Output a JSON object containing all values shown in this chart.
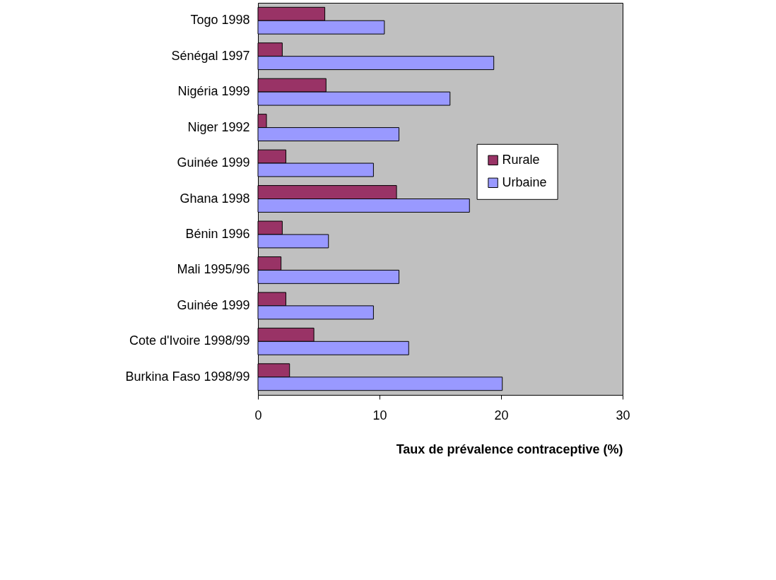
{
  "chart_data": {
    "type": "bar",
    "orientation": "horizontal",
    "xlabel": "Taux de prévalence contraceptive (%)",
    "categories": [
      "Togo 1998",
      "Sénégal 1997",
      "Nigéria 1999",
      "Niger 1992",
      "Guinée 1999",
      "Ghana 1998",
      "Bénin 1996",
      "Mali 1995/96",
      "Guinée 1999",
      "Cote d'Ivoire 1998/99",
      "Burkina Faso 1998/99"
    ],
    "series": [
      {
        "name": "Rurale",
        "color": "#993366",
        "values": [
          5.5,
          2.0,
          5.6,
          0.7,
          2.3,
          11.4,
          2.0,
          1.9,
          2.3,
          4.6,
          2.6
        ]
      },
      {
        "name": "Urbaine",
        "color": "#9999ff",
        "values": [
          10.4,
          19.4,
          15.8,
          11.6,
          9.5,
          17.4,
          5.8,
          11.6,
          9.5,
          12.4,
          20.1
        ]
      }
    ],
    "xlim": [
      0,
      30
    ],
    "xticks": [
      0,
      10,
      20,
      30
    ],
    "grid": false,
    "legend": "right"
  }
}
